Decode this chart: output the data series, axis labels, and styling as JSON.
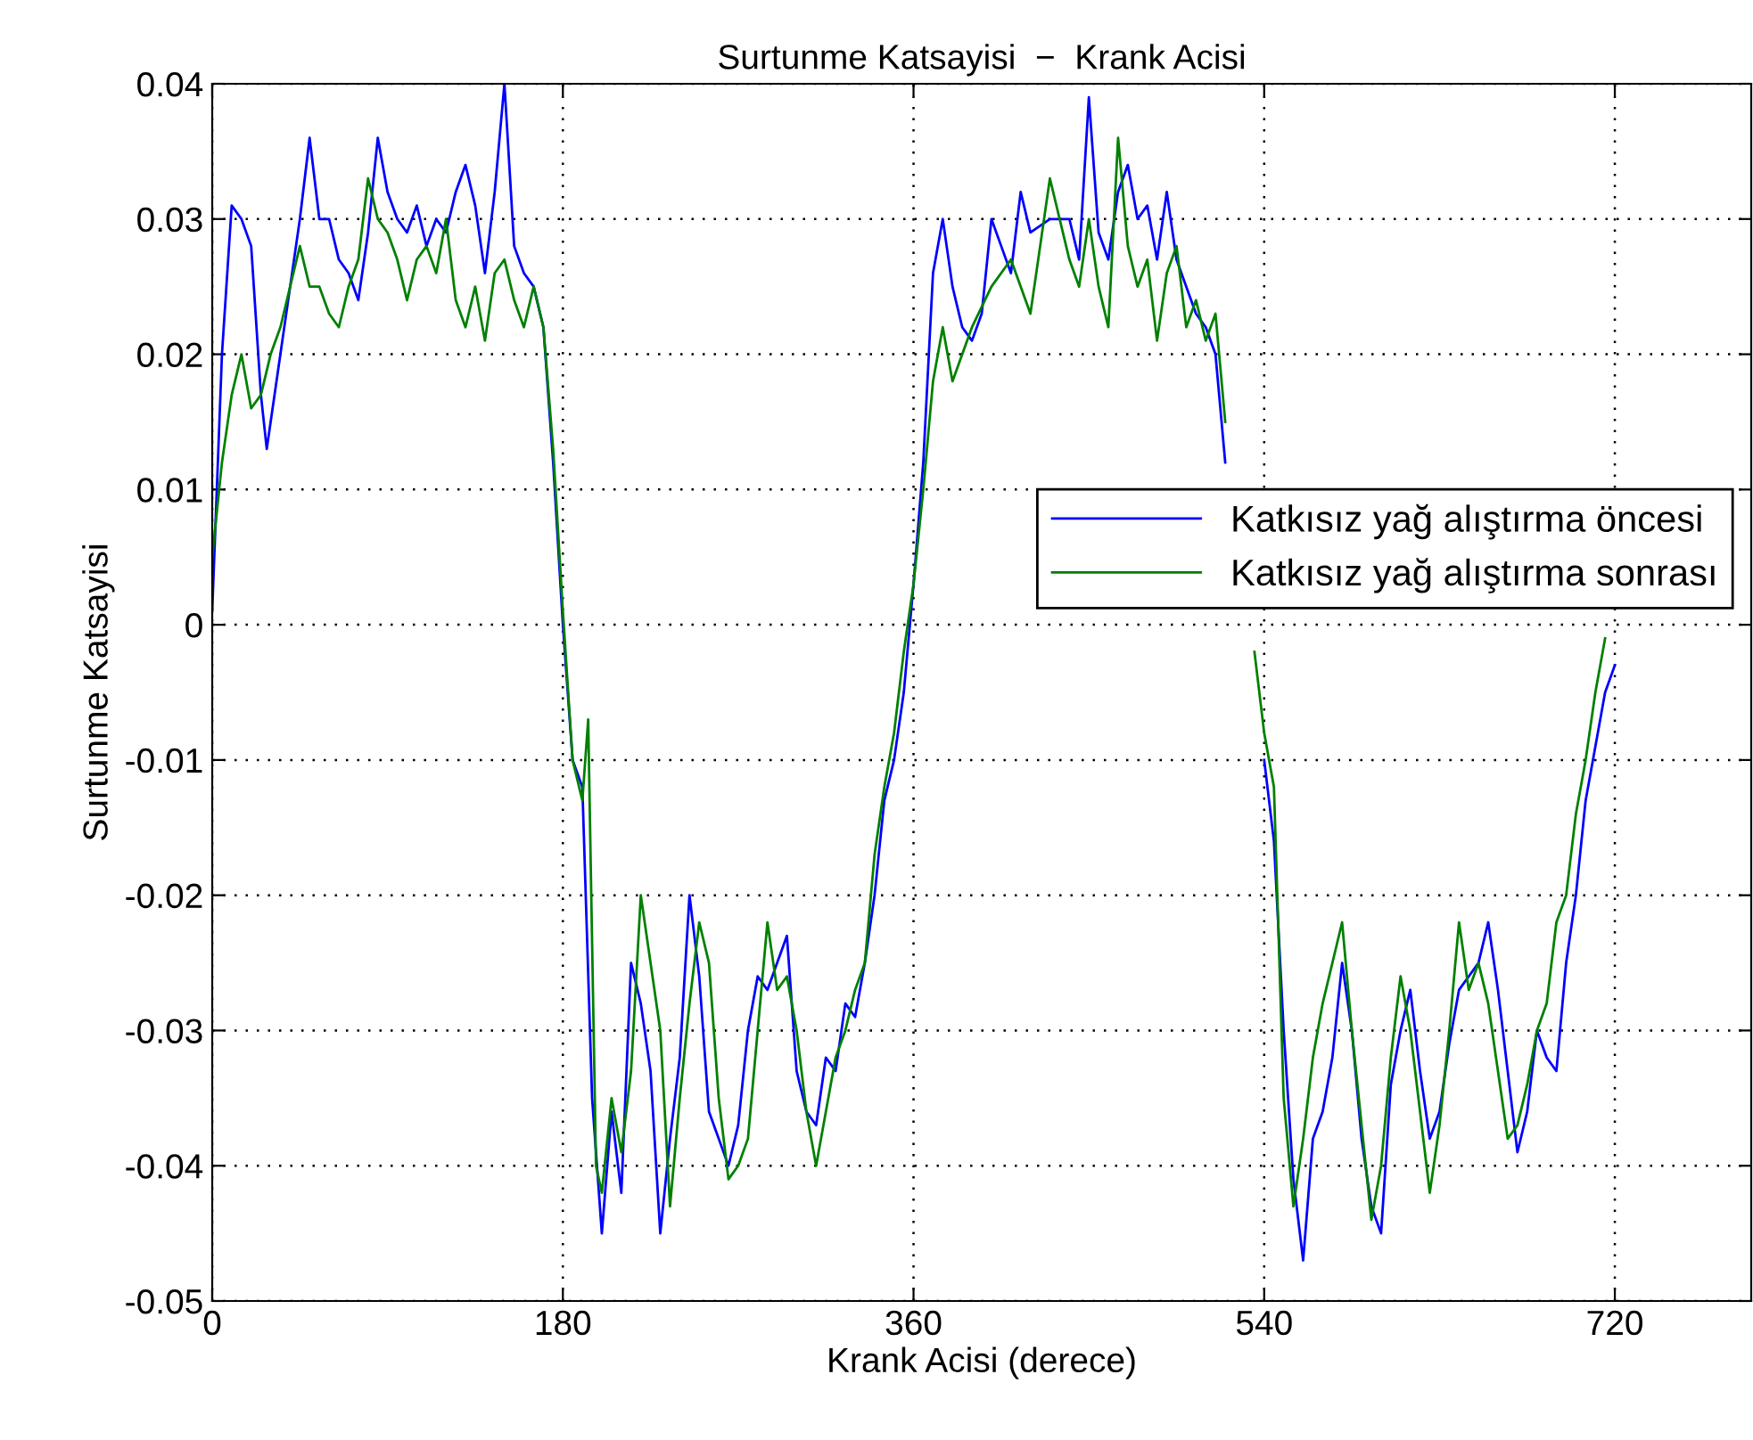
{
  "chart_data": {
    "type": "line",
    "title": "Surtunme Katsayisi  −  Krank Acisi",
    "xlabel": "Krank Acisi (derece)",
    "ylabel": "Surtunme Katsayisi",
    "xlim": [
      0,
      790
    ],
    "ylim": [
      -0.05,
      0.04
    ],
    "xticks": [
      0,
      180,
      360,
      540,
      720
    ],
    "yticks": [
      {
        "value": -0.05,
        "label": "-0.05"
      },
      {
        "value": -0.04,
        "label": "-0.04"
      },
      {
        "value": -0.03,
        "label": "-0.03"
      },
      {
        "value": -0.02,
        "label": "-0.02"
      },
      {
        "value": -0.01,
        "label": "-0.01"
      },
      0,
      0.01,
      0.02,
      0.03,
      0.04
    ],
    "grid": true,
    "legend": "right",
    "marker": "none",
    "line_style": "solid",
    "series": [
      {
        "name": "Katkısız yağ alıştırma öncesi",
        "color": "#0000ff",
        "x": [
          0,
          5,
          10,
          15,
          20,
          25,
          28,
          35,
          40,
          45,
          50,
          55,
          60,
          65,
          70,
          75,
          80,
          85,
          90,
          95,
          100,
          105,
          110,
          115,
          120,
          125,
          130,
          135,
          140,
          145,
          150,
          155,
          160,
          165,
          170,
          175,
          180,
          185,
          190,
          195,
          200,
          205,
          210,
          215,
          220,
          225,
          230,
          235,
          240,
          245,
          250,
          255,
          260,
          265,
          270,
          275,
          280,
          285,
          290,
          295,
          300,
          305,
          310,
          315,
          320,
          325,
          330,
          335,
          340,
          345,
          350,
          355,
          360,
          365,
          370,
          375,
          380,
          385,
          390,
          395,
          400,
          405,
          410,
          415,
          420,
          430,
          440,
          445,
          450,
          455,
          460,
          465,
          470,
          475,
          480,
          485,
          490,
          495,
          500,
          505,
          510,
          515,
          520,
          530,
          535,
          540,
          545,
          550,
          555,
          560,
          565,
          570,
          575,
          580,
          585,
          590,
          595,
          600,
          605,
          610,
          615,
          620,
          625,
          630,
          635,
          640,
          645,
          650,
          655,
          660,
          665,
          670,
          675,
          680,
          685,
          690,
          695,
          700,
          705,
          710,
          715,
          720
        ],
        "values": [
          0.001,
          0.02,
          0.031,
          0.03,
          0.028,
          0.017,
          0.013,
          0.02,
          0.025,
          0.03,
          0.036,
          0.03,
          0.03,
          0.027,
          0.026,
          0.024,
          0.029,
          0.036,
          0.032,
          0.03,
          0.029,
          0.031,
          0.028,
          0.03,
          0.029,
          0.032,
          0.034,
          0.031,
          0.026,
          0.032,
          0.04,
          0.028,
          0.026,
          0.025,
          0.022,
          0.012,
          0.0,
          -0.01,
          -0.012,
          -0.035,
          -0.045,
          -0.036,
          -0.042,
          -0.025,
          -0.028,
          -0.033,
          -0.045,
          -0.038,
          -0.032,
          -0.02,
          -0.026,
          -0.036,
          -0.038,
          -0.04,
          -0.037,
          -0.03,
          -0.026,
          -0.027,
          -0.025,
          -0.023,
          -0.033,
          -0.036,
          -0.037,
          -0.032,
          -0.033,
          -0.028,
          -0.029,
          -0.025,
          -0.02,
          -0.013,
          -0.01,
          -0.005,
          0.003,
          0.012,
          0.026,
          0.03,
          0.025,
          0.022,
          0.021,
          0.023,
          0.03,
          0.028,
          0.026,
          0.032,
          0.029,
          0.03,
          0.03,
          0.027,
          0.039,
          0.029,
          0.027,
          0.032,
          0.034,
          0.03,
          0.031,
          0.027,
          0.032,
          0.027,
          0.025,
          0.023,
          0.022,
          0.02,
          0.012,
          null,
          null,
          -0.01,
          -0.016,
          -0.03,
          -0.041,
          -0.047,
          -0.038,
          -0.036,
          -0.032,
          -0.025,
          -0.03,
          -0.038,
          -0.043,
          -0.045,
          -0.034,
          -0.03,
          -0.027,
          -0.033,
          -0.038,
          -0.036,
          -0.031,
          -0.027,
          -0.026,
          -0.025,
          -0.022,
          -0.027,
          -0.033,
          -0.039,
          -0.036,
          -0.03,
          -0.032,
          -0.033,
          -0.025,
          -0.02,
          -0.013,
          -0.009,
          -0.005,
          -0.003
        ]
      },
      {
        "name": "Katkısız yağ alıştırma sonrası",
        "color": "#008000",
        "x": [
          0,
          5,
          10,
          15,
          20,
          25,
          30,
          35,
          40,
          45,
          50,
          55,
          60,
          65,
          70,
          75,
          80,
          85,
          90,
          95,
          100,
          105,
          110,
          115,
          120,
          125,
          130,
          135,
          140,
          145,
          150,
          155,
          160,
          165,
          170,
          175,
          180,
          185,
          190,
          193,
          197,
          200,
          205,
          210,
          215,
          220,
          225,
          230,
          235,
          240,
          245,
          250,
          255,
          260,
          265,
          270,
          275,
          280,
          285,
          290,
          295,
          300,
          305,
          310,
          315,
          320,
          325,
          330,
          335,
          340,
          345,
          350,
          355,
          360,
          365,
          370,
          375,
          380,
          385,
          390,
          400,
          410,
          420,
          425,
          430,
          440,
          445,
          450,
          455,
          460,
          465,
          470,
          475,
          480,
          485,
          490,
          495,
          500,
          505,
          510,
          515,
          520,
          530,
          535,
          540,
          545,
          550,
          555,
          560,
          565,
          570,
          575,
          580,
          585,
          590,
          595,
          600,
          605,
          610,
          615,
          620,
          625,
          630,
          635,
          640,
          645,
          650,
          655,
          660,
          665,
          670,
          675,
          680,
          685,
          690,
          695,
          700,
          705,
          710,
          715
        ],
        "values": [
          0.005,
          0.012,
          0.017,
          0.02,
          0.016,
          0.017,
          0.02,
          0.022,
          0.025,
          0.028,
          0.025,
          0.025,
          0.023,
          0.022,
          0.025,
          0.027,
          0.033,
          0.03,
          0.029,
          0.027,
          0.024,
          0.027,
          0.028,
          0.026,
          0.03,
          0.024,
          0.022,
          0.025,
          0.021,
          0.026,
          0.027,
          0.024,
          0.022,
          0.025,
          0.022,
          0.013,
          0.001,
          -0.01,
          -0.013,
          -0.007,
          -0.04,
          -0.042,
          -0.035,
          -0.039,
          -0.033,
          -0.02,
          -0.025,
          -0.03,
          -0.043,
          -0.035,
          -0.028,
          -0.022,
          -0.025,
          -0.035,
          -0.041,
          -0.04,
          -0.038,
          -0.03,
          -0.022,
          -0.027,
          -0.026,
          -0.03,
          -0.036,
          -0.04,
          -0.036,
          -0.032,
          -0.03,
          -0.027,
          -0.025,
          -0.017,
          -0.012,
          -0.008,
          -0.002,
          0.003,
          0.01,
          0.018,
          0.022,
          0.018,
          0.02,
          0.022,
          0.025,
          0.027,
          0.023,
          0.028,
          0.033,
          0.027,
          0.025,
          0.03,
          0.025,
          0.022,
          0.036,
          0.028,
          0.025,
          0.027,
          0.021,
          0.026,
          0.028,
          0.022,
          0.024,
          0.021,
          0.023,
          0.015,
          null,
          -0.002,
          -0.008,
          -0.012,
          -0.035,
          -0.043,
          -0.038,
          -0.032,
          -0.028,
          -0.025,
          -0.022,
          -0.03,
          -0.037,
          -0.044,
          -0.04,
          -0.032,
          -0.026,
          -0.03,
          -0.036,
          -0.042,
          -0.037,
          -0.03,
          -0.022,
          -0.027,
          -0.025,
          -0.028,
          -0.033,
          -0.038,
          -0.037,
          -0.034,
          -0.03,
          -0.028,
          -0.022,
          -0.02,
          -0.014,
          -0.01,
          -0.005,
          -0.001
        ]
      }
    ]
  }
}
